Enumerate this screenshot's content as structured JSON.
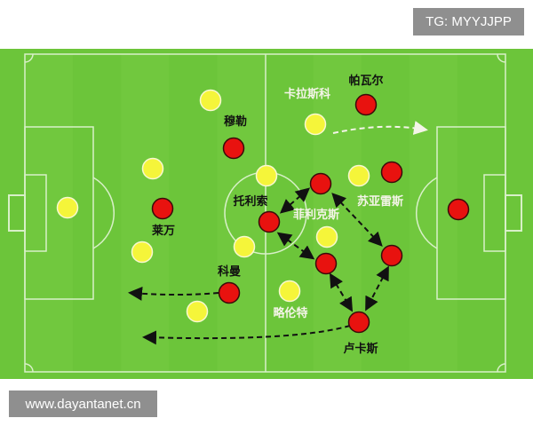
{
  "watermark_top": "TG: MYYJJPP",
  "watermark_bottom": "www.dayantanet.cn",
  "colors": {
    "pitch": "#6cc53a",
    "pitch_stripe": "#76cc42",
    "lines": "#d8f0c8",
    "team_red": "#e8120f",
    "team_yellow": "#f5f53a"
  },
  "players": {
    "yellow": [
      {
        "id": "y1"
      },
      {
        "id": "y2"
      },
      {
        "id": "y3"
      },
      {
        "id": "y4"
      },
      {
        "id": "y5"
      },
      {
        "id": "y6"
      },
      {
        "id": "y7"
      },
      {
        "id": "y8",
        "label": "卡拉斯科"
      },
      {
        "id": "y9"
      },
      {
        "id": "y10"
      },
      {
        "id": "y11",
        "label": "略伦特"
      }
    ],
    "red": [
      {
        "id": "r1",
        "label": "帕瓦尔"
      },
      {
        "id": "r2",
        "label": "穆勒"
      },
      {
        "id": "r3",
        "label": "莱万"
      },
      {
        "id": "r4",
        "label": "托利索"
      },
      {
        "id": "r5",
        "label": "菲利克斯"
      },
      {
        "id": "r6",
        "label": "苏亚雷斯"
      },
      {
        "id": "r7"
      },
      {
        "id": "r8"
      },
      {
        "id": "r9"
      },
      {
        "id": "r10",
        "label": "科曼"
      },
      {
        "id": "r11",
        "label": "卢卡斯"
      }
    ]
  }
}
